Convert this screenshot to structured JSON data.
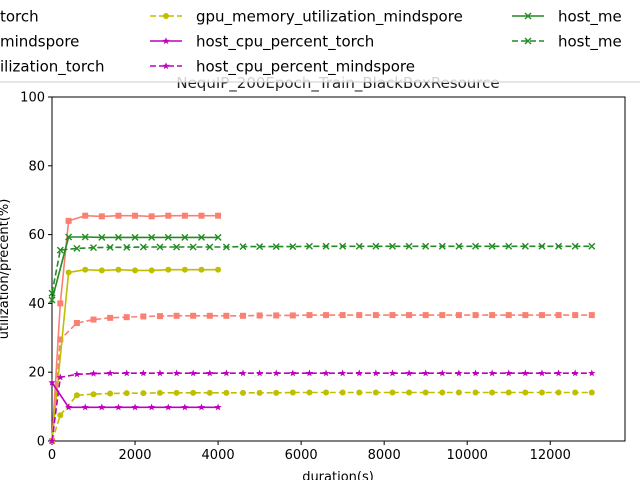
{
  "chart_data": {
    "type": "line",
    "title": "NequIP_200Epoch_Train_BlackBoxResource",
    "xlabel": "duration(s)",
    "ylabel": "utilization/precent(%)",
    "xlim": [
      0,
      13800
    ],
    "ylim": [
      0,
      100
    ],
    "x_ticks": [
      0,
      2000,
      4000,
      6000,
      8000,
      10000,
      12000
    ],
    "y_ticks": [
      0,
      20,
      40,
      60,
      80,
      100
    ],
    "grid": false,
    "legend_placement": "top, clipped above plot",
    "series": [
      {
        "name": "gpu_percent_torch",
        "legend_text": "torch",
        "color": "#fa8072",
        "dash": "solid",
        "marker": "square",
        "x": [
          0,
          200,
          400,
          800,
          1200,
          1600,
          2000,
          2400,
          2800,
          3200,
          3600,
          4000
        ],
        "y": [
          0,
          40,
          64,
          65.5,
          65.3,
          65.5,
          65.5,
          65.3,
          65.5,
          65.5,
          65.5,
          65.5
        ]
      },
      {
        "name": "gpu_percent_mindspore",
        "legend_text": "mindspore",
        "color": "#fa8072",
        "dash": "dashed",
        "marker": "square",
        "x": [
          0,
          200,
          600,
          1000,
          1400,
          1800,
          2200,
          2600,
          3000,
          3400,
          3800,
          4200,
          4600,
          5000,
          5400,
          5800,
          6200,
          6600,
          7000,
          7400,
          7800,
          8200,
          8600,
          9000,
          9400,
          9800,
          10200,
          10600,
          11000,
          11400,
          11800,
          12200,
          12600,
          13000
        ],
        "y": [
          0,
          29.5,
          34.3,
          35.3,
          35.8,
          36.0,
          36.2,
          36.3,
          36.4,
          36.4,
          36.4,
          36.4,
          36.4,
          36.5,
          36.5,
          36.5,
          36.6,
          36.6,
          36.6,
          36.6,
          36.6,
          36.6,
          36.6,
          36.6,
          36.6,
          36.6,
          36.6,
          36.6,
          36.6,
          36.6,
          36.6,
          36.6,
          36.6,
          36.6
        ]
      },
      {
        "name": "gpu_memory_utilization_torch",
        "legend_text": "ilization_torch",
        "color": "#bfbf00",
        "dash": "solid",
        "marker": "circle",
        "x": [
          0,
          400,
          800,
          1200,
          1600,
          2000,
          2400,
          2800,
          3200,
          3600,
          4000
        ],
        "y": [
          0,
          49,
          49.8,
          49.6,
          49.8,
          49.6,
          49.6,
          49.8,
          49.8,
          49.8,
          49.8
        ]
      },
      {
        "name": "gpu_memory_utilization_mindspore",
        "legend_text": "gpu_memory_utilization_mindspore",
        "color": "#bfbf00",
        "dash": "dashed",
        "marker": "circle",
        "x": [
          0,
          200,
          600,
          1000,
          1400,
          1800,
          2200,
          2600,
          3000,
          3400,
          3800,
          4200,
          4600,
          5000,
          5400,
          5800,
          6200,
          6600,
          7000,
          7400,
          7800,
          8200,
          8600,
          9000,
          9400,
          9800,
          10200,
          10600,
          11000,
          11400,
          11800,
          12200,
          12600,
          13000
        ],
        "y": [
          0,
          7.5,
          13.3,
          13.6,
          13.8,
          13.9,
          13.9,
          14.0,
          14.0,
          14.0,
          14.0,
          14.0,
          14.0,
          14.0,
          14.0,
          14.1,
          14.1,
          14.1,
          14.1,
          14.1,
          14.1,
          14.1,
          14.1,
          14.1,
          14.1,
          14.1,
          14.1,
          14.1,
          14.1,
          14.1,
          14.1,
          14.1,
          14.1,
          14.1
        ]
      },
      {
        "name": "host_cpu_percent_torch",
        "legend_text": "host_cpu_percent_torch",
        "color": "#bf00bf",
        "dash": "solid",
        "marker": "star",
        "x": [
          0,
          400,
          800,
          1200,
          1600,
          2000,
          2400,
          2800,
          3200,
          3600,
          4000
        ],
        "y": [
          17,
          9.8,
          9.8,
          9.8,
          9.8,
          9.8,
          9.8,
          9.8,
          9.8,
          9.8,
          9.8
        ]
      },
      {
        "name": "host_cpu_percent_mindspore",
        "legend_text": "host_cpu_percent_mindspore",
        "color": "#bf00bf",
        "dash": "dashed",
        "marker": "star",
        "x": [
          0,
          200,
          600,
          1000,
          1400,
          1800,
          2200,
          2600,
          3000,
          3400,
          3800,
          4200,
          4600,
          5000,
          5400,
          5800,
          6200,
          6600,
          7000,
          7400,
          7800,
          8200,
          8600,
          9000,
          9400,
          9800,
          10200,
          10600,
          11000,
          11400,
          11800,
          12200,
          12600,
          13000
        ],
        "y": [
          0,
          18.5,
          19.4,
          19.6,
          19.7,
          19.7,
          19.7,
          19.7,
          19.7,
          19.7,
          19.7,
          19.7,
          19.7,
          19.7,
          19.7,
          19.7,
          19.7,
          19.7,
          19.7,
          19.7,
          19.7,
          19.7,
          19.7,
          19.7,
          19.7,
          19.7,
          19.7,
          19.7,
          19.7,
          19.7,
          19.7,
          19.7,
          19.7,
          19.7
        ]
      },
      {
        "name": "host_memory_percent_torch",
        "legend_text": "host_me",
        "color": "#228b22",
        "dash": "solid",
        "marker": "x",
        "x": [
          0,
          400,
          800,
          1200,
          1600,
          2000,
          2400,
          2800,
          3200,
          3600,
          4000
        ],
        "y": [
          41,
          59.3,
          59.3,
          59.2,
          59.2,
          59.2,
          59.2,
          59.2,
          59.2,
          59.2,
          59.2
        ]
      },
      {
        "name": "host_memory_percent_mindspore",
        "legend_text": "host_me",
        "color": "#228b22",
        "dash": "dashed",
        "marker": "x",
        "x": [
          0,
          200,
          600,
          1000,
          1400,
          1800,
          2200,
          2600,
          3000,
          3400,
          3800,
          4200,
          4600,
          5000,
          5400,
          5800,
          6200,
          6600,
          7000,
          7400,
          7800,
          8200,
          8600,
          9000,
          9400,
          9800,
          10200,
          10600,
          11000,
          11400,
          11800,
          12200,
          12600,
          13000
        ],
        "y": [
          43,
          55.5,
          56.0,
          56.2,
          56.3,
          56.3,
          56.4,
          56.4,
          56.4,
          56.4,
          56.4,
          56.4,
          56.5,
          56.5,
          56.5,
          56.5,
          56.6,
          56.6,
          56.6,
          56.6,
          56.6,
          56.6,
          56.6,
          56.6,
          56.6,
          56.6,
          56.6,
          56.6,
          56.6,
          56.6,
          56.6,
          56.6,
          56.6,
          56.6
        ]
      }
    ]
  }
}
